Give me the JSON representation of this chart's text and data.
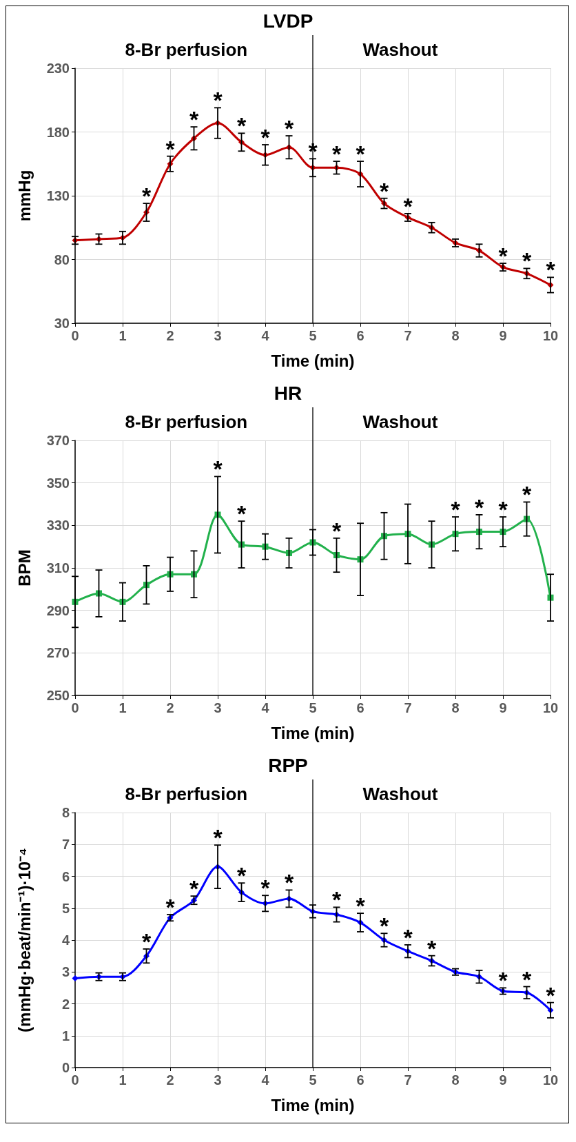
{
  "chart_data": [
    {
      "type": "line",
      "title": "LVDP",
      "xlabel": "Time (min)",
      "ylabel": "mmHg",
      "x": [
        0,
        0.5,
        1,
        1.5,
        2,
        2.5,
        3,
        3.5,
        4,
        4.5,
        5,
        5.5,
        6,
        6.5,
        7,
        7.5,
        8,
        8.5,
        9,
        9.5,
        10
      ],
      "series": [
        {
          "color": "#c00000",
          "values": [
            95,
            96,
            97,
            117,
            155,
            175,
            187,
            172,
            162,
            168,
            152,
            152,
            147,
            124,
            113,
            105,
            93,
            87,
            74,
            69,
            60
          ],
          "errors": [
            3,
            4,
            5,
            7,
            6,
            9,
            12,
            7,
            8,
            9,
            7,
            5,
            10,
            4,
            3,
            4,
            3,
            5,
            3,
            4,
            6
          ]
        }
      ],
      "xlim": [
        0,
        10
      ],
      "xticks": [
        0,
        1,
        2,
        3,
        4,
        5,
        6,
        7,
        8,
        9,
        10
      ],
      "ylim": [
        30,
        230
      ],
      "yticks": [
        30,
        80,
        130,
        180,
        230
      ],
      "grid": true,
      "marker": "diamond",
      "line_style": "solid",
      "ref_lines": [
        {
          "axis": "x",
          "value": 5,
          "color": "#000000"
        }
      ],
      "annotations": [
        "8-Br perfusion",
        "Washout",
        {
          "text": "*",
          "x": 1.5,
          "y": 117
        },
        {
          "text": "*",
          "x": 2,
          "y": 155
        },
        {
          "text": "*",
          "x": 2.5,
          "y": 175
        },
        {
          "text": "*",
          "x": 3,
          "y": 187
        },
        {
          "text": "*",
          "x": 3.5,
          "y": 172
        },
        {
          "text": "*",
          "x": 4,
          "y": 162
        },
        {
          "text": "*",
          "x": 4.5,
          "y": 168
        },
        {
          "text": "*",
          "x": 5,
          "y": 152
        },
        {
          "text": "*",
          "x": 5.5,
          "y": 152
        },
        {
          "text": "*",
          "x": 6,
          "y": 147
        },
        {
          "text": "*",
          "x": 6.5,
          "y": 124
        },
        {
          "text": "*",
          "x": 7,
          "y": 113
        },
        {
          "text": "*",
          "x": 9,
          "y": 74
        },
        {
          "text": "*",
          "x": 9.5,
          "y": 69
        },
        {
          "text": "*",
          "x": 10,
          "y": 60
        }
      ]
    },
    {
      "type": "line",
      "title": "HR",
      "xlabel": "Time (min)",
      "ylabel": "BPM",
      "x": [
        0,
        0.5,
        1,
        1.5,
        2,
        2.5,
        3,
        3.5,
        4,
        4.5,
        5,
        5.5,
        6,
        6.5,
        7,
        7.5,
        8,
        8.5,
        9,
        9.5,
        10
      ],
      "series": [
        {
          "color": "#22b14c",
          "values": [
            294,
            298,
            294,
            302,
            307,
            307,
            335,
            321,
            320,
            317,
            322,
            316,
            314,
            325,
            326,
            321,
            326,
            327,
            327,
            333,
            296
          ],
          "errors": [
            12,
            11,
            9,
            9,
            8,
            11,
            18,
            11,
            6,
            7,
            6,
            8,
            17,
            11,
            14,
            11,
            8,
            8,
            7,
            8,
            11
          ]
        }
      ],
      "xlim": [
        0,
        10
      ],
      "xticks": [
        0,
        1,
        2,
        3,
        4,
        5,
        6,
        7,
        8,
        9,
        10
      ],
      "ylim": [
        250,
        370
      ],
      "yticks": [
        250,
        270,
        290,
        310,
        330,
        350,
        370
      ],
      "grid": true,
      "marker": "square",
      "line_style": "solid",
      "ref_lines": [
        {
          "axis": "x",
          "value": 5,
          "color": "#000000"
        }
      ],
      "annotations": [
        "8-Br perfusion",
        "Washout",
        {
          "text": "*",
          "x": 3,
          "y": 335
        },
        {
          "text": "*",
          "x": 3.5,
          "y": 321
        },
        {
          "text": "*",
          "x": 5.5,
          "y": 316
        },
        {
          "text": "*",
          "x": 8,
          "y": 326
        },
        {
          "text": "*",
          "x": 8.5,
          "y": 327
        },
        {
          "text": "*",
          "x": 9,
          "y": 327
        },
        {
          "text": "*",
          "x": 9.5,
          "y": 333
        }
      ]
    },
    {
      "type": "line",
      "title": "RPP",
      "xlabel": "Time (min)",
      "ylabel": "(mmHg·beat/min⁻¹)·10⁻⁴",
      "x": [
        0,
        0.5,
        1,
        1.5,
        2,
        2.5,
        3,
        3.5,
        4,
        4.5,
        5,
        5.5,
        6,
        6.5,
        7,
        7.5,
        8,
        8.5,
        9,
        9.5,
        10
      ],
      "series": [
        {
          "color": "#0000ff",
          "values": [
            2.8,
            2.85,
            2.85,
            3.5,
            4.7,
            5.25,
            6.3,
            5.5,
            5.15,
            5.3,
            4.9,
            4.8,
            4.55,
            4.0,
            3.65,
            3.35,
            3.0,
            2.85,
            2.4,
            2.35,
            1.8
          ],
          "errors": [
            null,
            0.12,
            0.12,
            0.22,
            0.1,
            0.13,
            0.68,
            0.29,
            0.25,
            0.27,
            0.2,
            0.23,
            0.29,
            0.21,
            0.2,
            0.16,
            0.1,
            0.2,
            0.1,
            0.19,
            0.24
          ]
        }
      ],
      "xlim": [
        0,
        10
      ],
      "xticks": [
        0,
        1,
        2,
        3,
        4,
        5,
        6,
        7,
        8,
        9,
        10
      ],
      "ylim": [
        0,
        8
      ],
      "yticks": [
        0,
        1,
        2,
        3,
        4,
        5,
        6,
        7,
        8
      ],
      "grid": true,
      "marker": "diamond",
      "line_style": "solid",
      "ref_lines": [
        {
          "axis": "x",
          "value": 5,
          "color": "#000000"
        }
      ],
      "annotations": [
        "8-Br perfusion",
        "Washout",
        {
          "text": "*",
          "x": 1.5,
          "y": 3.5
        },
        {
          "text": "*",
          "x": 2,
          "y": 4.7
        },
        {
          "text": "*",
          "x": 2.5,
          "y": 5.25
        },
        {
          "text": "*",
          "x": 3,
          "y": 6.3
        },
        {
          "text": "*",
          "x": 3.5,
          "y": 5.5
        },
        {
          "text": "*",
          "x": 4,
          "y": 5.15
        },
        {
          "text": "*",
          "x": 4.5,
          "y": 5.3
        },
        {
          "text": "*",
          "x": 5.5,
          "y": 4.8
        },
        {
          "text": "*",
          "x": 6,
          "y": 4.55
        },
        {
          "text": "*",
          "x": 6.5,
          "y": 4.0
        },
        {
          "text": "*",
          "x": 7,
          "y": 3.65
        },
        {
          "text": "*",
          "x": 7.5,
          "y": 3.35
        },
        {
          "text": "*",
          "x": 9,
          "y": 2.4
        },
        {
          "text": "*",
          "x": 9.5,
          "y": 2.35
        },
        {
          "text": "*",
          "x": 10,
          "y": 1.8
        }
      ]
    }
  ]
}
